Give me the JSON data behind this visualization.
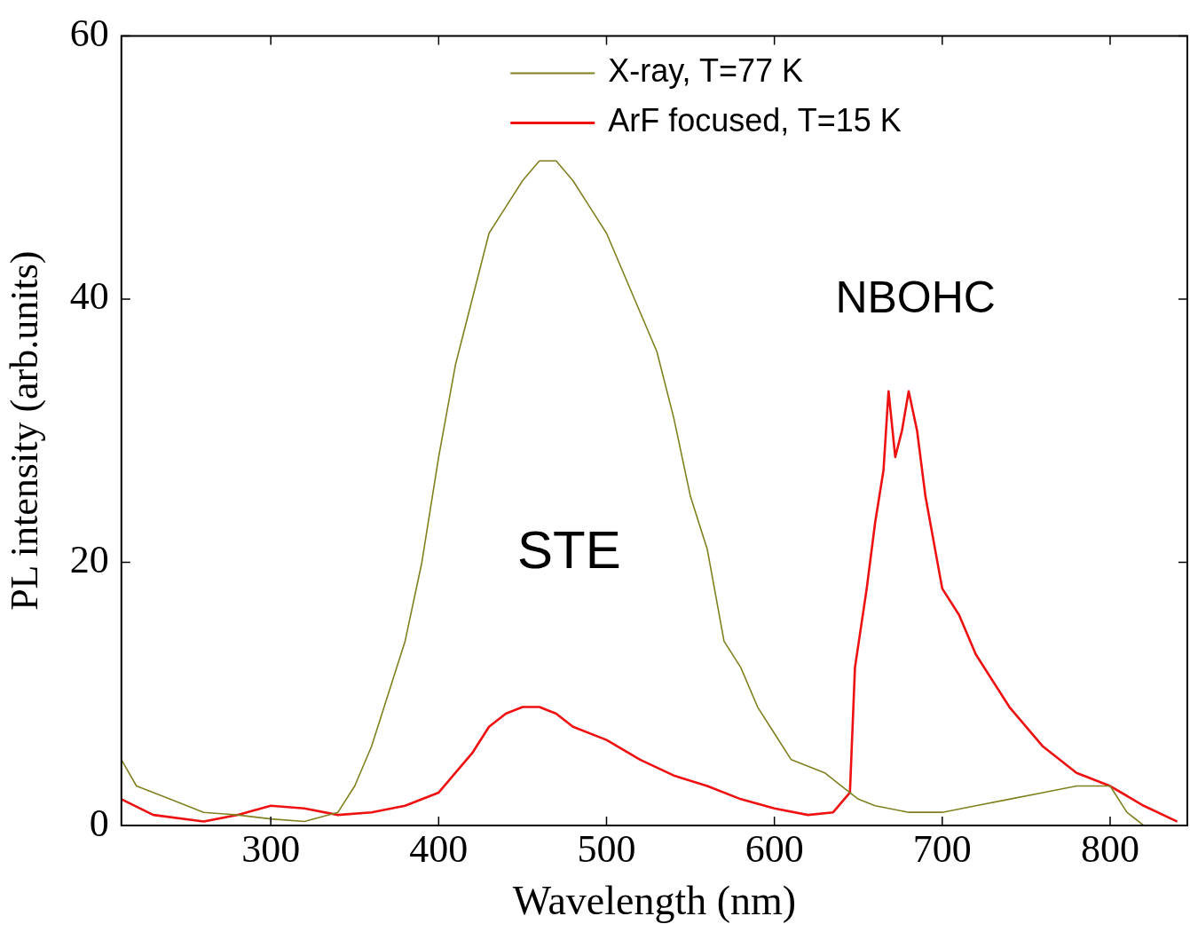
{
  "chart_data": {
    "type": "line",
    "xlabel": "Wavelength (nm)",
    "ylabel": "PL intensity (arb.units)",
    "xlim": [
      211,
      846
    ],
    "ylim": [
      0,
      60
    ],
    "xticks": [
      300,
      400,
      500,
      600,
      700,
      800
    ],
    "yticks": [
      0,
      20,
      40,
      60
    ],
    "grid": false,
    "legend": "top right",
    "marker": "none",
    "line_style": "solid",
    "annotations": [
      "STE",
      "NBOHC"
    ],
    "series": [
      {
        "name": "X-ray, T=77 K",
        "color": "#808020",
        "x": [
          211,
          220,
          240,
          260,
          280,
          300,
          320,
          340,
          350,
          360,
          370,
          380,
          390,
          400,
          410,
          420,
          430,
          440,
          450,
          460,
          470,
          480,
          490,
          500,
          510,
          520,
          530,
          540,
          550,
          560,
          570,
          580,
          590,
          600,
          610,
          620,
          630,
          640,
          650,
          660,
          680,
          700,
          720,
          740,
          760,
          780,
          800,
          810,
          820
        ],
        "values": [
          5,
          3,
          2,
          1,
          0.8,
          0.5,
          0.3,
          1,
          3,
          6,
          10,
          14,
          20,
          28,
          35,
          40,
          45,
          47,
          49,
          50.5,
          50.5,
          49,
          47,
          45,
          42,
          39,
          36,
          31,
          25,
          21,
          14,
          12,
          9,
          7,
          5,
          4.5,
          4,
          3,
          2,
          1.5,
          1,
          1,
          1.5,
          2,
          2.5,
          3,
          3,
          1,
          0
        ]
      },
      {
        "name": "ArF focused, T=15 K",
        "color": "#ee1111",
        "x": [
          211,
          230,
          260,
          280,
          300,
          320,
          340,
          360,
          380,
          400,
          410,
          420,
          430,
          440,
          450,
          460,
          470,
          480,
          500,
          520,
          540,
          560,
          580,
          600,
          620,
          635,
          645,
          648,
          655,
          660,
          665,
          668,
          672,
          676,
          680,
          685,
          690,
          700,
          710,
          720,
          740,
          760,
          780,
          800,
          820,
          840
        ],
        "values": [
          2,
          0.8,
          0.3,
          0.8,
          1.5,
          1.3,
          0.8,
          1,
          1.5,
          2.5,
          4,
          5.5,
          7.5,
          8.5,
          9,
          9,
          8.5,
          7.5,
          6.5,
          5,
          3.8,
          3,
          2,
          1.3,
          0.8,
          1,
          2.5,
          12,
          18,
          23,
          27,
          33,
          28,
          30,
          33,
          30,
          25,
          18,
          16,
          13,
          9,
          6,
          4,
          3,
          1.5,
          0.3
        ]
      }
    ]
  }
}
